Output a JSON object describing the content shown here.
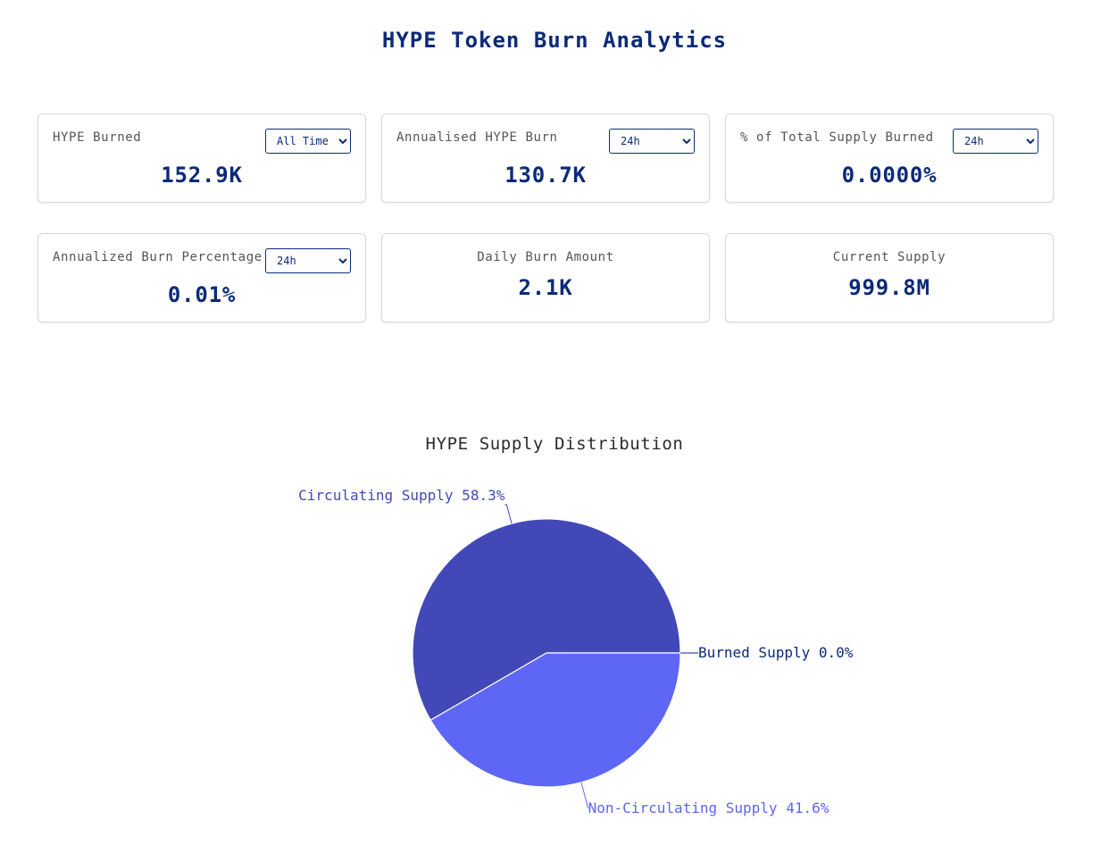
{
  "page": {
    "title": "HYPE Token Burn Analytics"
  },
  "cards": [
    {
      "label": "HYPE Burned",
      "value": "152.9K",
      "select": {
        "selected": "All Time"
      }
    },
    {
      "label": "Annualised HYPE Burn",
      "value": "130.7K",
      "select": {
        "selected": "24h"
      }
    },
    {
      "label": "% of Total Supply Burned",
      "value": "0.0000%",
      "select": {
        "selected": "24h"
      }
    },
    {
      "label": "Annualized Burn Percentage",
      "value": "0.01%",
      "select": {
        "selected": "24h"
      }
    },
    {
      "label": "Daily Burn Amount",
      "value": "2.1K"
    },
    {
      "label": "Current Supply",
      "value": "999.8M"
    }
  ],
  "chart_data": {
    "type": "pie",
    "title": "HYPE Supply Distribution",
    "slices": [
      {
        "label": "Circulating Supply",
        "percent": 58.3,
        "percent_label": "58.3%",
        "color": "#4348b8"
      },
      {
        "label": "Non-Circulating Supply",
        "percent": 41.6,
        "percent_label": "41.6%",
        "color": "#5d66f5"
      },
      {
        "label": "Burned Supply",
        "percent": 0.0,
        "percent_label": "0.0%",
        "color": "#0b2a78"
      }
    ]
  }
}
